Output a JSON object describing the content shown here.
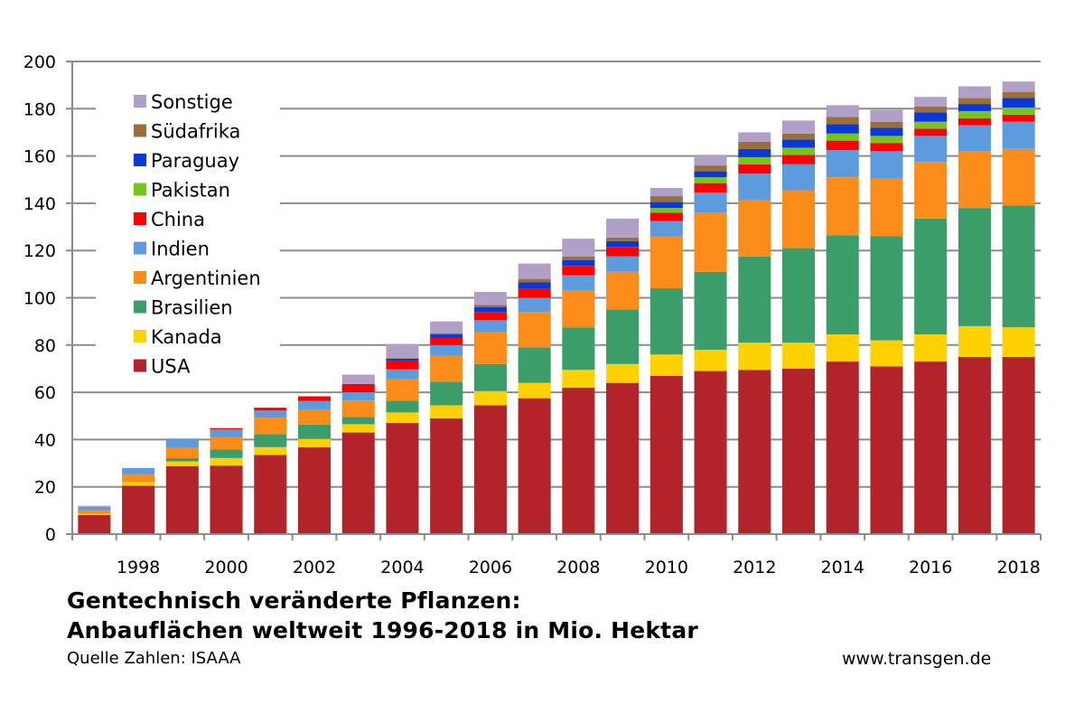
{
  "chart_data": {
    "type": "bar",
    "stacked": true,
    "title": "Gentechnisch veränderte Pflanzen:",
    "subtitle": "Anbauflächen weltweit 1996-2018 in Mio. Hektar",
    "source": "Quelle Zahlen: ISAAA",
    "website": "www.transgen.de",
    "xlabel": "",
    "ylabel": "",
    "ylim": [
      0,
      200
    ],
    "yticks": [
      0,
      20,
      40,
      60,
      80,
      100,
      120,
      140,
      160,
      180,
      200
    ],
    "grid": true,
    "legend_position": "top-left",
    "categories": [
      "1997",
      "1998",
      "1999",
      "2000",
      "2001",
      "2002",
      "2003",
      "2004",
      "2005",
      "2006",
      "2007",
      "2008",
      "2009",
      "2010",
      "2011",
      "2012",
      "2013",
      "2014",
      "2015",
      "2016",
      "2017",
      "2018"
    ],
    "xtick_labels": [
      {
        "index": 1,
        "label": "1998"
      },
      {
        "index": 3,
        "label": "2000"
      },
      {
        "index": 5,
        "label": "2002"
      },
      {
        "index": 7,
        "label": "2004"
      },
      {
        "index": 9,
        "label": "2006"
      },
      {
        "index": 11,
        "label": "2008"
      },
      {
        "index": 13,
        "label": "2010"
      },
      {
        "index": 15,
        "label": "2012"
      },
      {
        "index": 17,
        "label": "2014"
      },
      {
        "index": 19,
        "label": "2016"
      },
      {
        "index": 21,
        "label": "2018"
      }
    ],
    "series": [
      {
        "name": "USA",
        "color": "#b3232a",
        "values": [
          8.1,
          20.5,
          28.7,
          29.0,
          33.5,
          36.8,
          43.0,
          47.0,
          49.0,
          54.5,
          57.5,
          62.0,
          64.0,
          67.0,
          69.0,
          69.5,
          70.0,
          73.0,
          71.0,
          73.0,
          75.0,
          75.0
        ]
      },
      {
        "name": "Kanada",
        "color": "#ffd100",
        "values": [
          0.5,
          1.6,
          2.1,
          3.2,
          3.3,
          3.5,
          3.5,
          4.5,
          5.5,
          6.0,
          6.5,
          7.5,
          8.0,
          9.0,
          9.0,
          11.5,
          11.0,
          11.5,
          11.0,
          11.5,
          13.0,
          12.5
        ]
      },
      {
        "name": "Brasilien",
        "color": "#3a9d6a",
        "values": [
          0,
          0,
          1.3,
          3.6,
          5.5,
          6.0,
          3.0,
          5.0,
          10.0,
          11.5,
          15.0,
          18.0,
          23.0,
          28.0,
          33.0,
          36.5,
          40.0,
          42.0,
          44.0,
          49.0,
          50.0,
          51.5
        ]
      },
      {
        "name": "Argentinien",
        "color": "#fb8c1a",
        "values": [
          1.5,
          3.3,
          4.3,
          5.3,
          7.0,
          6.5,
          7.0,
          9.0,
          11.0,
          13.5,
          15.0,
          15.5,
          16.0,
          22.0,
          25.0,
          24.0,
          24.5,
          24.5,
          24.5,
          24.0,
          24.0,
          24.0
        ]
      },
      {
        "name": "Indien",
        "color": "#5b9bde",
        "values": [
          1.5,
          2.6,
          3.8,
          3.2,
          3.0,
          3.5,
          3.5,
          4.2,
          4.5,
          5.0,
          6.0,
          6.5,
          6.5,
          6.5,
          8.5,
          11.0,
          11.0,
          11.5,
          11.5,
          11.0,
          11.0,
          11.5
        ]
      },
      {
        "name": "China",
        "color": "#fe0000",
        "values": [
          0,
          0,
          0,
          0.5,
          1.2,
          2.0,
          3.5,
          3.5,
          3.0,
          3.5,
          4.0,
          4.0,
          4.0,
          3.5,
          4.0,
          4.0,
          4.0,
          4.0,
          3.5,
          3.0,
          3.0,
          3.0
        ]
      },
      {
        "name": "Pakistan",
        "color": "#77c41a",
        "values": [
          0,
          0,
          0,
          0,
          0,
          0,
          0,
          0,
          0,
          0,
          0,
          0,
          0,
          2.0,
          2.5,
          3.0,
          3.0,
          3.0,
          3.0,
          3.0,
          3.0,
          3.0
        ]
      },
      {
        "name": "Paraguay",
        "color": "#0a38d4",
        "values": [
          0,
          0,
          0,
          0,
          0,
          0,
          0,
          1.0,
          1.5,
          2.0,
          2.5,
          2.5,
          2.5,
          2.5,
          2.5,
          3.5,
          3.5,
          4.0,
          3.5,
          4.0,
          3.0,
          4.0
        ]
      },
      {
        "name": "Südafrika",
        "color": "#9b6f3a",
        "values": [
          0,
          0,
          0,
          0,
          0,
          0,
          0,
          0.3,
          0.5,
          1.0,
          1.5,
          1.5,
          1.5,
          2.5,
          2.5,
          3.0,
          2.5,
          3.0,
          2.5,
          2.5,
          2.5,
          2.5
        ]
      },
      {
        "name": "Sonstige",
        "color": "#b0a0c8",
        "values": [
          0.4,
          0,
          0.3,
          0.2,
          0,
          0,
          4.0,
          6.0,
          5.0,
          5.5,
          6.5,
          7.5,
          8.0,
          3.5,
          4.5,
          4.0,
          5.5,
          5.0,
          5.0,
          4.0,
          5.0,
          4.5
        ]
      }
    ],
    "legend_order": [
      "Sonstige",
      "Südafrika",
      "Paraguay",
      "Pakistan",
      "China",
      "Indien",
      "Argentinien",
      "Brasilien",
      "Kanada",
      "USA"
    ]
  }
}
